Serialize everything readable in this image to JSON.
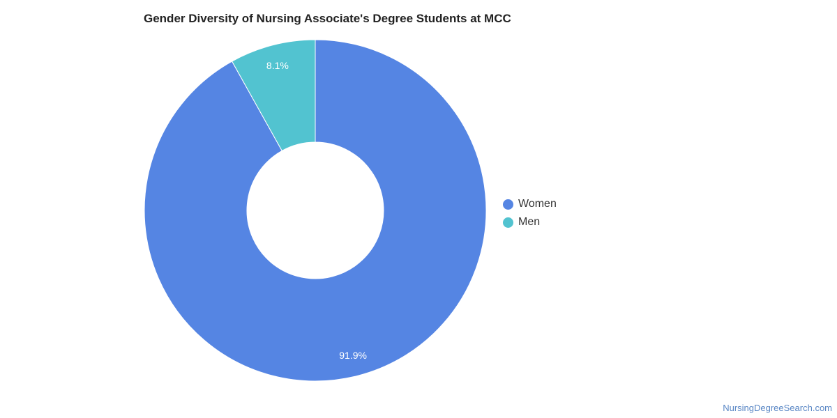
{
  "chart_data": {
    "type": "pie",
    "title": "Gender Diversity of Nursing Associate's Degree Students at MCC",
    "donut": true,
    "categories": [
      "Women",
      "Men"
    ],
    "values": [
      91.9,
      8.1
    ],
    "data_labels": [
      "91.9%",
      "8.1%"
    ],
    "colors": [
      "#5585e3",
      "#52c3d0"
    ],
    "legend": {
      "position": "right",
      "entries": [
        "Women",
        "Men"
      ]
    }
  },
  "footer": {
    "source": "NursingDegreeSearch.com"
  }
}
